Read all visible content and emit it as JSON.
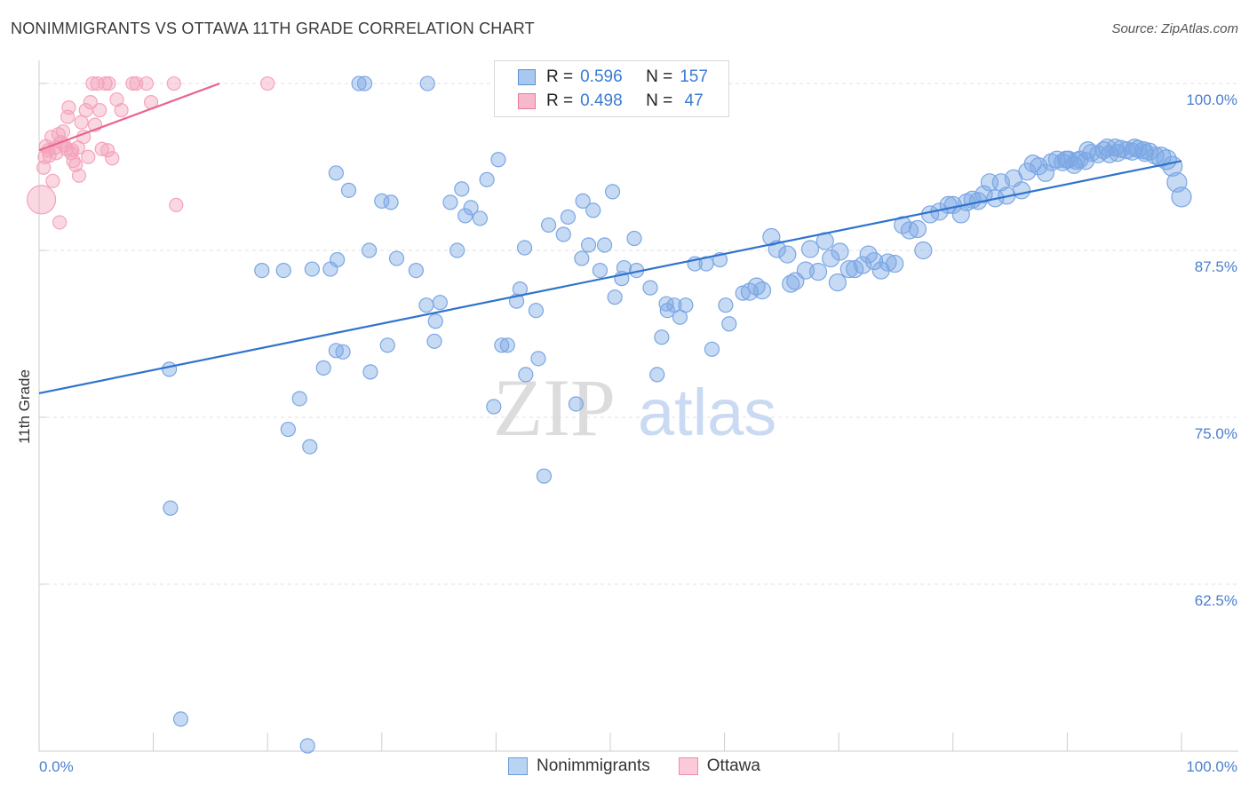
{
  "title": "NONIMMIGRANTS VS OTTAWA 11TH GRADE CORRELATION CHART",
  "source": "Source: ZipAtlas.com",
  "watermark": {
    "zip": "ZIP",
    "atlas": "atlas"
  },
  "legend_top": {
    "rows": [
      {
        "r_label": "R =",
        "r_value": "0.596",
        "n_label": "N =",
        "n_value": "157",
        "color": "#a9c8f0",
        "border": "#5b8fd6"
      },
      {
        "r_label": "R =",
        "r_value": "0.498",
        "n_label": "N =",
        "n_value": " 47",
        "color": "#f7b8cb",
        "border": "#e97a9c"
      }
    ]
  },
  "legend_bottom": [
    {
      "label": "Nonimmigrants",
      "color": "#b9d3f3",
      "border": "#6b9ad8"
    },
    {
      "label": "Ottawa",
      "color": "#fbc9d7",
      "border": "#ec90ab"
    }
  ],
  "chart_data": {
    "type": "scatter",
    "xlabel": "",
    "ylabel": "11th Grade",
    "xlim": [
      0,
      100
    ],
    "ylim": [
      50,
      101
    ],
    "x_tick_labels": [
      "0.0%",
      "100.0%"
    ],
    "y_ticks": [
      62.5,
      75.0,
      87.5,
      100.0
    ],
    "y_tick_labels": [
      "62.5%",
      "75.0%",
      "87.5%",
      "100.0%"
    ],
    "grid": true,
    "series": [
      {
        "name": "Nonimmigrants",
        "color": "#7aa6e4",
        "line_color": "#2f73cc",
        "trend": {
          "x0": 0,
          "y0": 76.8,
          "x1": 100,
          "y1": 94.2
        },
        "points": [
          [
            11.4,
            78.6
          ],
          [
            11.5,
            68.2
          ],
          [
            12.4,
            52.4
          ],
          [
            19.5,
            86.0
          ],
          [
            21.4,
            86.0
          ],
          [
            21.8,
            74.1
          ],
          [
            22.8,
            76.4
          ],
          [
            23.7,
            72.8
          ],
          [
            23.9,
            86.1
          ],
          [
            24.9,
            78.7
          ],
          [
            25.5,
            86.1
          ],
          [
            26.0,
            80.0
          ],
          [
            26.1,
            86.8
          ],
          [
            26.6,
            79.9
          ],
          [
            27.1,
            92.0
          ],
          [
            28.0,
            100.0
          ],
          [
            28.5,
            100.0
          ],
          [
            28.9,
            87.5
          ],
          [
            29.0,
            78.4
          ],
          [
            30.5,
            80.4
          ],
          [
            30.8,
            91.1
          ],
          [
            31.3,
            86.9
          ],
          [
            33.0,
            86.0
          ],
          [
            33.9,
            83.4
          ],
          [
            34.0,
            100.0
          ],
          [
            34.6,
            80.7
          ],
          [
            34.7,
            82.2
          ],
          [
            35.1,
            83.6
          ],
          [
            36.0,
            91.1
          ],
          [
            36.6,
            87.5
          ],
          [
            37.0,
            92.1
          ],
          [
            37.3,
            90.1
          ],
          [
            37.8,
            90.7
          ],
          [
            38.6,
            89.9
          ],
          [
            39.2,
            92.8
          ],
          [
            39.8,
            75.8
          ],
          [
            40.2,
            94.3
          ],
          [
            40.5,
            80.4
          ],
          [
            41.0,
            80.4
          ],
          [
            41.8,
            83.7
          ],
          [
            42.1,
            84.6
          ],
          [
            42.5,
            87.7
          ],
          [
            42.6,
            78.2
          ],
          [
            43.5,
            83.0
          ],
          [
            43.7,
            79.4
          ],
          [
            44.2,
            70.6
          ],
          [
            44.6,
            89.4
          ],
          [
            45.9,
            88.7
          ],
          [
            46.3,
            90.0
          ],
          [
            47.0,
            76.0
          ],
          [
            47.5,
            86.9
          ],
          [
            47.6,
            91.2
          ],
          [
            48.1,
            87.9
          ],
          [
            48.5,
            90.5
          ],
          [
            49.1,
            86.0
          ],
          [
            49.5,
            87.9
          ],
          [
            50.2,
            91.9
          ],
          [
            50.4,
            84.0
          ],
          [
            51.0,
            85.4
          ],
          [
            51.2,
            86.2
          ],
          [
            52.1,
            88.4
          ],
          [
            52.3,
            86.0
          ],
          [
            53.5,
            84.7
          ],
          [
            54.1,
            78.2
          ],
          [
            54.5,
            81.0
          ],
          [
            54.9,
            83.5
          ],
          [
            55.6,
            83.4
          ],
          [
            56.1,
            82.5
          ],
          [
            56.6,
            83.4
          ],
          [
            57.4,
            86.5
          ],
          [
            58.4,
            86.5
          ],
          [
            58.9,
            80.1
          ],
          [
            59.6,
            86.8
          ],
          [
            60.1,
            83.4
          ],
          [
            60.4,
            82.0
          ],
          [
            61.6,
            84.3
          ],
          [
            62.2,
            84.4
          ],
          [
            62.8,
            84.8
          ],
          [
            63.3,
            84.5
          ],
          [
            64.1,
            88.5
          ],
          [
            64.6,
            87.6
          ],
          [
            65.5,
            87.2
          ],
          [
            65.8,
            85.0
          ],
          [
            66.2,
            85.2
          ],
          [
            67.1,
            86.0
          ],
          [
            67.5,
            87.6
          ],
          [
            68.2,
            85.9
          ],
          [
            68.8,
            88.2
          ],
          [
            69.3,
            86.9
          ],
          [
            69.9,
            85.1
          ],
          [
            70.1,
            87.4
          ],
          [
            70.9,
            86.1
          ],
          [
            71.4,
            86.1
          ],
          [
            72.1,
            86.4
          ],
          [
            72.6,
            87.2
          ],
          [
            73.1,
            86.7
          ],
          [
            73.7,
            86.0
          ],
          [
            74.3,
            86.6
          ],
          [
            74.9,
            86.5
          ],
          [
            75.6,
            89.4
          ],
          [
            76.2,
            89.0
          ],
          [
            76.9,
            89.1
          ],
          [
            77.4,
            87.5
          ],
          [
            78.0,
            90.2
          ],
          [
            78.8,
            90.4
          ],
          [
            79.6,
            90.9
          ],
          [
            80.0,
            90.9
          ],
          [
            80.7,
            90.2
          ],
          [
            81.2,
            91.1
          ],
          [
            81.7,
            91.3
          ],
          [
            82.2,
            91.2
          ],
          [
            82.7,
            91.7
          ],
          [
            83.2,
            92.6
          ],
          [
            83.7,
            91.4
          ],
          [
            84.2,
            92.6
          ],
          [
            84.7,
            91.6
          ],
          [
            85.3,
            92.9
          ],
          [
            86.0,
            92.0
          ],
          [
            86.5,
            93.4
          ],
          [
            87.0,
            94.0
          ],
          [
            87.5,
            93.8
          ],
          [
            88.1,
            93.3
          ],
          [
            88.6,
            94.1
          ],
          [
            89.1,
            94.3
          ],
          [
            89.6,
            94.1
          ],
          [
            90.1,
            94.3
          ],
          [
            90.6,
            93.9
          ],
          [
            91.1,
            94.3
          ],
          [
            91.6,
            94.2
          ],
          [
            92.1,
            94.8
          ],
          [
            92.7,
            94.7
          ],
          [
            93.2,
            95.0
          ],
          [
            93.7,
            94.7
          ],
          [
            94.2,
            95.2
          ],
          [
            94.7,
            95.1
          ],
          [
            95.2,
            95.0
          ],
          [
            95.7,
            94.9
          ],
          [
            96.2,
            95.1
          ],
          [
            96.7,
            95.0
          ],
          [
            97.2,
            94.9
          ],
          [
            97.7,
            94.6
          ],
          [
            98.2,
            94.5
          ],
          [
            98.7,
            94.3
          ],
          [
            99.2,
            93.8
          ],
          [
            99.6,
            92.6
          ],
          [
            100.0,
            91.5
          ],
          [
            96.8,
            94.8
          ],
          [
            95.9,
            95.2
          ],
          [
            94.4,
            94.8
          ],
          [
            93.5,
            95.2
          ],
          [
            91.8,
            95.0
          ],
          [
            90.8,
            94.2
          ],
          [
            89.9,
            94.3
          ],
          [
            23.5,
            50.4
          ],
          [
            26.0,
            93.3
          ],
          [
            30.0,
            91.2
          ],
          [
            55.0,
            83.0
          ]
        ]
      },
      {
        "name": "Ottawa",
        "color": "#f4a3bb",
        "line_color": "#e8658f",
        "trend": {
          "x0": 0,
          "y0": 95.0,
          "x1": 15.8,
          "y1": 100.0
        },
        "points": [
          [
            0.2,
            91.3
          ],
          [
            0.4,
            93.7
          ],
          [
            0.5,
            94.5
          ],
          [
            0.6,
            95.3
          ],
          [
            0.8,
            95.0
          ],
          [
            0.9,
            94.6
          ],
          [
            1.1,
            96.0
          ],
          [
            1.2,
            92.7
          ],
          [
            1.4,
            95.2
          ],
          [
            1.5,
            94.8
          ],
          [
            1.7,
            96.2
          ],
          [
            1.8,
            89.6
          ],
          [
            1.9,
            95.6
          ],
          [
            2.1,
            96.4
          ],
          [
            2.2,
            95.4
          ],
          [
            2.4,
            95.1
          ],
          [
            2.5,
            97.5
          ],
          [
            2.6,
            98.2
          ],
          [
            2.8,
            94.8
          ],
          [
            2.9,
            95.0
          ],
          [
            3.0,
            94.2
          ],
          [
            3.2,
            93.9
          ],
          [
            3.4,
            95.2
          ],
          [
            3.5,
            93.1
          ],
          [
            3.7,
            97.1
          ],
          [
            3.9,
            96.0
          ],
          [
            4.1,
            98.0
          ],
          [
            4.3,
            94.5
          ],
          [
            4.5,
            98.6
          ],
          [
            4.7,
            100.0
          ],
          [
            4.9,
            96.9
          ],
          [
            5.1,
            100.0
          ],
          [
            5.3,
            98.0
          ],
          [
            5.5,
            95.1
          ],
          [
            5.8,
            100.0
          ],
          [
            6.1,
            100.0
          ],
          [
            6.4,
            94.4
          ],
          [
            6.8,
            98.8
          ],
          [
            7.2,
            98.0
          ],
          [
            8.2,
            100.0
          ],
          [
            8.5,
            100.0
          ],
          [
            9.4,
            100.0
          ],
          [
            9.8,
            98.6
          ],
          [
            11.8,
            100.0
          ],
          [
            12.0,
            90.9
          ],
          [
            20.0,
            100.0
          ],
          [
            6.0,
            95.0
          ]
        ]
      }
    ]
  }
}
